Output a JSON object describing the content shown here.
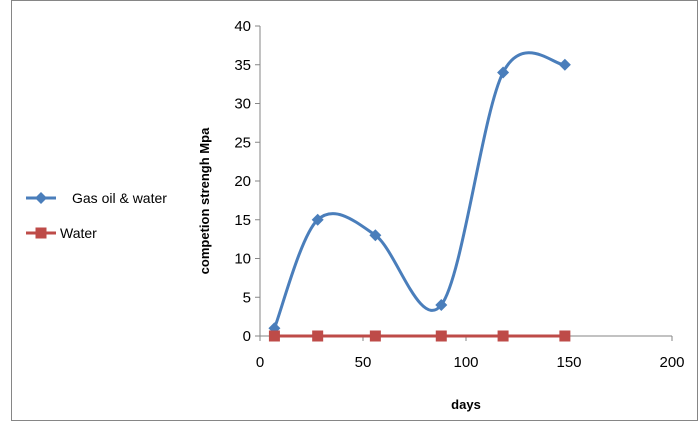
{
  "chart_data": {
    "type": "scatter",
    "title": "",
    "xlabel": "days",
    "ylabel": "competion strengh Mpa",
    "xlim": [
      0,
      200
    ],
    "ylim": [
      0,
      40
    ],
    "x_ticks": [
      0,
      50,
      100,
      150,
      200
    ],
    "y_ticks": [
      0,
      5,
      10,
      15,
      20,
      25,
      30,
      35,
      40
    ],
    "grid": false,
    "smooth_lines": true,
    "legend_position": "left",
    "series": [
      {
        "name": "Gas oil & water",
        "color": "#4a7ebb",
        "marker": "diamond",
        "x": [
          7,
          28,
          56,
          88,
          118,
          148
        ],
        "y": [
          1,
          15,
          13,
          4,
          34,
          35
        ]
      },
      {
        "name": "Water",
        "color": "#be4b48",
        "marker": "square",
        "x": [
          7,
          28,
          56,
          88,
          118,
          148
        ],
        "y": [
          0,
          0,
          0,
          0,
          0,
          0
        ]
      }
    ]
  }
}
